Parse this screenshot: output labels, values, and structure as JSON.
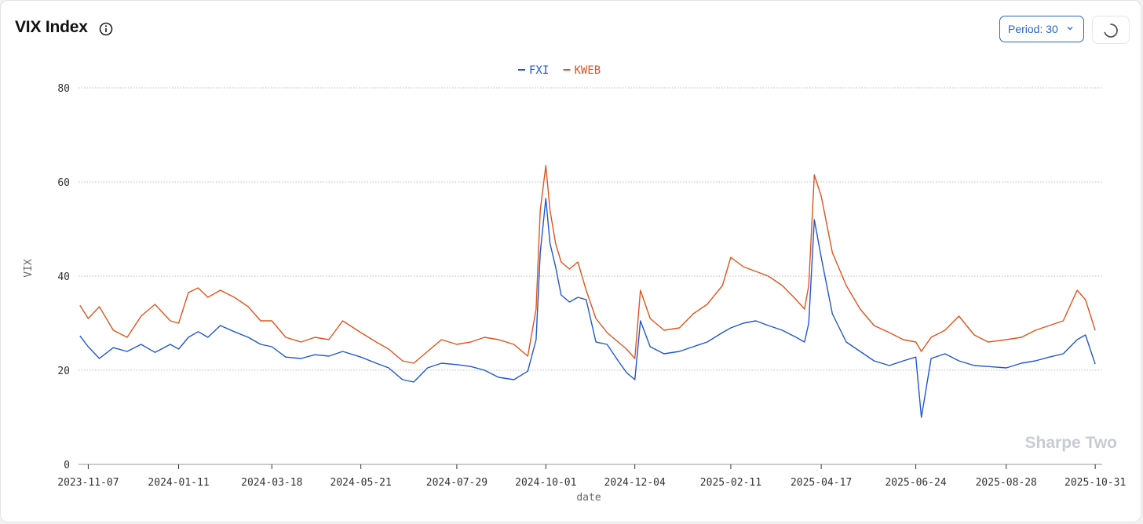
{
  "header": {
    "title": "VIX Index",
    "period_label": "Period: 30",
    "watermark": "Sharpe Two"
  },
  "colors": {
    "FXI": "#1f57d1",
    "KWEB": "#e0541c",
    "grid": "#bdbdbd",
    "accent": "#2a64c9"
  },
  "icons": {
    "info": "info-icon",
    "period_dropdown": "chevron-down-icon",
    "refresh": "spinner-icon"
  },
  "chart_data": {
    "type": "line",
    "xlabel": "date",
    "ylabel": "VIX",
    "ylim": [
      0,
      80
    ],
    "yticks": [
      0,
      20,
      40,
      60,
      80
    ],
    "xlim": [
      "2023-10-31",
      "2025-11-05"
    ],
    "xticks": [
      "2023-11-07",
      "2024-01-11",
      "2024-03-18",
      "2024-05-21",
      "2024-07-29",
      "2024-10-01",
      "2024-12-04",
      "2025-02-11",
      "2025-04-17",
      "2025-06-24",
      "2025-08-28",
      "2025-10-31"
    ],
    "grid": "horizontal dotted",
    "legend": "top-center",
    "series": [
      {
        "name": "FXI",
        "x": [
          "2023-11-01",
          "2023-11-07",
          "2023-11-15",
          "2023-11-25",
          "2023-12-05",
          "2023-12-15",
          "2023-12-25",
          "2024-01-05",
          "2024-01-11",
          "2024-01-18",
          "2024-01-25",
          "2024-02-01",
          "2024-02-10",
          "2024-02-20",
          "2024-03-01",
          "2024-03-10",
          "2024-03-18",
          "2024-03-28",
          "2024-04-08",
          "2024-04-18",
          "2024-04-28",
          "2024-05-08",
          "2024-05-21",
          "2024-06-01",
          "2024-06-10",
          "2024-06-20",
          "2024-06-28",
          "2024-07-08",
          "2024-07-18",
          "2024-07-29",
          "2024-08-08",
          "2024-08-18",
          "2024-08-28",
          "2024-09-08",
          "2024-09-18",
          "2024-09-24",
          "2024-09-27",
          "2024-10-01",
          "2024-10-04",
          "2024-10-08",
          "2024-10-12",
          "2024-10-18",
          "2024-10-24",
          "2024-10-30",
          "2024-11-06",
          "2024-11-14",
          "2024-11-22",
          "2024-11-28",
          "2024-12-04",
          "2024-12-08",
          "2024-12-15",
          "2024-12-25",
          "2025-01-05",
          "2025-01-15",
          "2025-01-25",
          "2025-02-05",
          "2025-02-11",
          "2025-02-20",
          "2025-03-01",
          "2025-03-10",
          "2025-03-20",
          "2025-03-30",
          "2025-04-05",
          "2025-04-08",
          "2025-04-12",
          "2025-04-17",
          "2025-04-25",
          "2025-05-05",
          "2025-05-15",
          "2025-05-25",
          "2025-06-05",
          "2025-06-15",
          "2025-06-24",
          "2025-06-28",
          "2025-07-05",
          "2025-07-15",
          "2025-07-25",
          "2025-08-05",
          "2025-08-15",
          "2025-08-28",
          "2025-09-08",
          "2025-09-18",
          "2025-09-28",
          "2025-10-08",
          "2025-10-18",
          "2025-10-24",
          "2025-10-31"
        ],
        "values": [
          27.3,
          25.0,
          22.5,
          24.8,
          24.0,
          25.5,
          23.8,
          25.5,
          24.5,
          27.0,
          28.2,
          27.0,
          29.5,
          28.2,
          27.0,
          25.5,
          25.0,
          22.8,
          22.5,
          23.3,
          23.0,
          24.0,
          22.8,
          21.5,
          20.5,
          18.0,
          17.5,
          20.5,
          21.5,
          21.2,
          20.8,
          20.0,
          18.5,
          18.0,
          19.8,
          26.5,
          45.0,
          56.5,
          47.0,
          42.0,
          36.0,
          34.5,
          35.5,
          35.0,
          26.0,
          25.5,
          22.0,
          19.5,
          18.0,
          30.5,
          25.0,
          23.5,
          24.0,
          25.0,
          26.0,
          28.0,
          29.0,
          30.0,
          30.5,
          29.5,
          28.5,
          27.0,
          26.0,
          30.0,
          52.0,
          44.0,
          32.0,
          26.0,
          24.0,
          22.0,
          21.0,
          22.0,
          22.8,
          10.0,
          22.5,
          23.5,
          22.0,
          21.0,
          20.8,
          20.5,
          21.5,
          22.0,
          22.8,
          23.5,
          26.5,
          27.5,
          21.3
        ]
      },
      {
        "name": "KWEB",
        "x": [
          "2023-11-01",
          "2023-11-07",
          "2023-11-15",
          "2023-11-25",
          "2023-12-05",
          "2023-12-15",
          "2023-12-25",
          "2024-01-05",
          "2024-01-11",
          "2024-01-18",
          "2024-01-25",
          "2024-02-01",
          "2024-02-10",
          "2024-02-20",
          "2024-03-01",
          "2024-03-10",
          "2024-03-18",
          "2024-03-28",
          "2024-04-08",
          "2024-04-18",
          "2024-04-28",
          "2024-05-08",
          "2024-05-21",
          "2024-06-01",
          "2024-06-10",
          "2024-06-20",
          "2024-06-28",
          "2024-07-08",
          "2024-07-18",
          "2024-07-29",
          "2024-08-08",
          "2024-08-18",
          "2024-08-28",
          "2024-09-08",
          "2024-09-18",
          "2024-09-24",
          "2024-09-27",
          "2024-10-01",
          "2024-10-04",
          "2024-10-08",
          "2024-10-12",
          "2024-10-18",
          "2024-10-24",
          "2024-10-30",
          "2024-11-06",
          "2024-11-14",
          "2024-11-22",
          "2024-11-28",
          "2024-12-04",
          "2024-12-08",
          "2024-12-15",
          "2024-12-25",
          "2025-01-05",
          "2025-01-15",
          "2025-01-25",
          "2025-02-05",
          "2025-02-11",
          "2025-02-20",
          "2025-03-01",
          "2025-03-10",
          "2025-03-20",
          "2025-03-30",
          "2025-04-05",
          "2025-04-08",
          "2025-04-12",
          "2025-04-17",
          "2025-04-25",
          "2025-05-05",
          "2025-05-15",
          "2025-05-25",
          "2025-06-05",
          "2025-06-15",
          "2025-06-24",
          "2025-06-28",
          "2025-07-05",
          "2025-07-15",
          "2025-07-25",
          "2025-08-05",
          "2025-08-15",
          "2025-08-28",
          "2025-09-08",
          "2025-09-18",
          "2025-09-28",
          "2025-10-08",
          "2025-10-18",
          "2025-10-24",
          "2025-10-31"
        ],
        "values": [
          33.8,
          31.0,
          33.5,
          28.5,
          27.0,
          31.5,
          34.0,
          30.5,
          30.0,
          36.5,
          37.5,
          35.5,
          37.0,
          35.5,
          33.5,
          30.5,
          30.5,
          27.0,
          26.0,
          27.0,
          26.5,
          30.5,
          28.0,
          26.0,
          24.5,
          22.0,
          21.5,
          24.0,
          26.5,
          25.5,
          26.0,
          27.0,
          26.5,
          25.5,
          23.0,
          33.0,
          54.0,
          63.5,
          54.0,
          47.0,
          43.0,
          41.5,
          43.0,
          37.0,
          31.0,
          28.0,
          26.0,
          24.5,
          22.5,
          37.0,
          31.0,
          28.5,
          29.0,
          32.0,
          34.0,
          38.0,
          44.0,
          42.0,
          41.0,
          40.0,
          38.0,
          35.0,
          33.0,
          38.0,
          61.5,
          57.0,
          45.0,
          38.0,
          33.0,
          29.5,
          28.0,
          26.5,
          26.0,
          24.0,
          27.0,
          28.5,
          31.5,
          27.5,
          26.0,
          26.5,
          27.0,
          28.5,
          29.5,
          30.5,
          37.0,
          35.0,
          28.5
        ]
      }
    ]
  }
}
